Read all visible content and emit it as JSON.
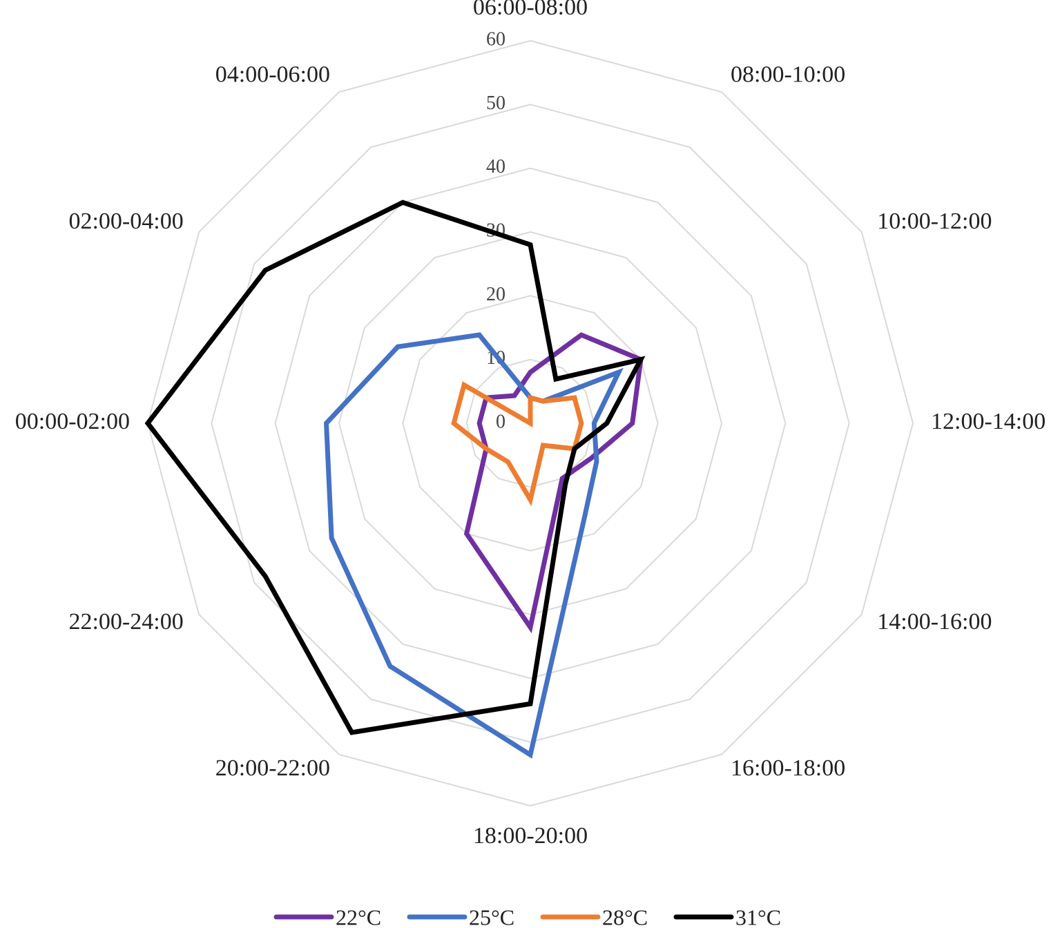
{
  "chart_data": {
    "type": "radar",
    "categories": [
      "06:00-08:00",
      "08:00-10:00",
      "10:00-12:00",
      "12:00-14:00",
      "14:00-16:00",
      "16:00-18:00",
      "18:00-20:00",
      "20:00-22:00",
      "22:00-24:00",
      "00:00-02:00",
      "02:00-04:00",
      "04:00-06:00"
    ],
    "series": [
      {
        "name": "22°C",
        "color": "#7030a0",
        "values": [
          8,
          16,
          20,
          16,
          11,
          10,
          32,
          20,
          8,
          8,
          8,
          5
        ]
      },
      {
        "name": "25°C",
        "color": "#4472c4",
        "values": [
          4,
          4,
          16,
          10,
          12,
          17,
          52,
          44,
          36,
          32,
          24,
          16
        ]
      },
      {
        "name": "28°C",
        "color": "#ed7d31",
        "values": [
          4,
          4,
          8,
          8,
          8,
          4,
          12,
          7,
          8,
          12,
          12,
          0
        ]
      },
      {
        "name": "31°C",
        "color": "#000000",
        "values": [
          28,
          8,
          20,
          12,
          8,
          11,
          44,
          56,
          48,
          60,
          48,
          40
        ]
      }
    ],
    "ylim": [
      0,
      60
    ],
    "yticks": [
      0,
      10,
      20,
      30,
      40,
      50,
      60
    ],
    "grid": true,
    "legend": "bottom"
  }
}
